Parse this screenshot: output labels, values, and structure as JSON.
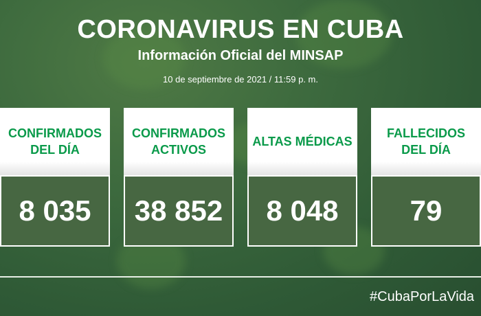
{
  "header": {
    "title": "CORONAVIRUS EN CUBA",
    "subtitle": "Información Oficial del MINSAP",
    "date": "10 de septiembre de 2021 / 11:59 p. m."
  },
  "cards": [
    {
      "label": "CONFIRMADOS\nDEL DÍA",
      "value": "8 035"
    },
    {
      "label": "CONFIRMADOS\nACTIVOS",
      "value": "38 852"
    },
    {
      "label": "ALTAS MÉDICAS",
      "value": "8 048"
    },
    {
      "label": "FALLECIDOS\nDEL DÍA",
      "value": "79"
    }
  ],
  "footer": {
    "hashtag": "#CubaPorLaVida"
  },
  "colors": {
    "accent_green": "#0a9a4a",
    "background": "#3d6a3e"
  }
}
